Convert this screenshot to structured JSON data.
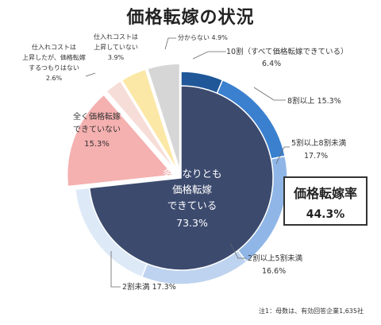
{
  "title": "価格転嫁の状況",
  "rate_box": {
    "label": "価格転嫁率",
    "value": "44.3%"
  },
  "note": "注1：母数は、有効回答企業1,635社",
  "chart_data": {
    "type": "pie",
    "slices": [
      {
        "name": "10割（すべて価格転嫁できている）",
        "value": 6.4,
        "color": "#1f5799",
        "ring": "outer"
      },
      {
        "name": "8割以上",
        "value": 15.3,
        "color": "#3a80cf",
        "ring": "outer"
      },
      {
        "name": "5割以上8割未満",
        "value": 17.7,
        "color": "#8fb6e6",
        "ring": "outer"
      },
      {
        "name": "2割以上5割未満",
        "value": 16.6,
        "color": "#bed3ef",
        "ring": "outer"
      },
      {
        "name": "2割未満",
        "value": 17.3,
        "color": "#dde9f7",
        "ring": "outer"
      },
      {
        "name": "全く価格転嫁できていない",
        "value": 15.3,
        "color": "#f5b0b0",
        "ring": "none",
        "exploded": true
      },
      {
        "name": "仕入れコストは上昇したが、価格転嫁するつもりはない",
        "value": 2.6,
        "color": "#f7ddd8",
        "ring": "none",
        "exploded": true
      },
      {
        "name": "仕入れコストは上昇していない",
        "value": 3.9,
        "color": "#fce8a6",
        "ring": "none",
        "exploded": true
      },
      {
        "name": "分からない",
        "value": 4.9,
        "color": "#d6d6d6",
        "ring": "none",
        "exploded": true
      }
    ],
    "inner_slice": {
      "name": "多少なりとも価格転嫁できている",
      "value": 73.3,
      "color": "#3c4a6e"
    },
    "labels": {
      "l10": "10割（すべて価格転嫁できている）",
      "l10v": "6.4%",
      "l8": "8割以上 15.3%",
      "l58a": "5割以上8割未満",
      "l58b": "17.7%",
      "l25a": "2割以上5割未満",
      "l25b": "16.6%",
      "l2": "2割未満 17.3%",
      "none1": "全く価格転嫁",
      "none2": "できていない",
      "none3": "15.3%",
      "nop1": "仕入れコストは",
      "nop2": "上昇したが、価格転嫁",
      "nop3": "するつもりはない",
      "nop4": "2.6%",
      "nor1": "仕入れコストは",
      "nor2": "上昇していない",
      "nor3": "3.9%",
      "unk": "分からない 4.9%",
      "in1": "多少なりとも",
      "in2": "価格転嫁",
      "in3": "できている",
      "in4": "73.3%"
    }
  }
}
